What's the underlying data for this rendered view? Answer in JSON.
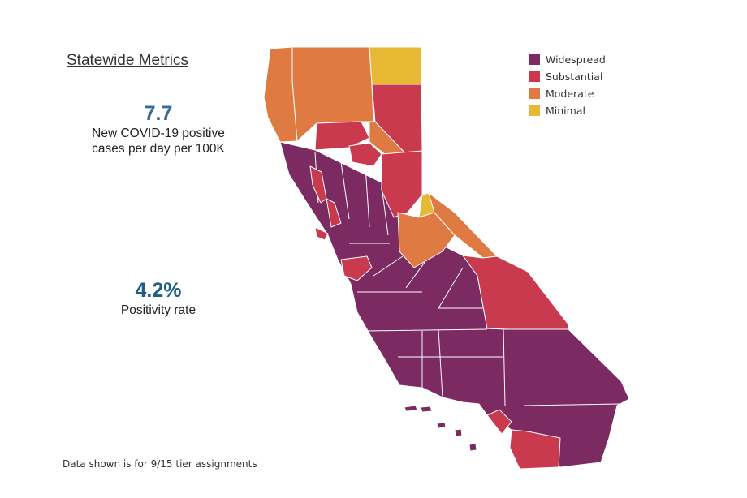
{
  "heading": "Statewide Metrics",
  "metrics": {
    "cases": {
      "value": "7.7",
      "label_line1": "New COVID-19 positive",
      "label_line2": "cases per day per 100K",
      "color": "#3a6d96"
    },
    "positivity": {
      "value": "4.2%",
      "label": "Positivity rate",
      "color": "#1d5f86"
    }
  },
  "legend": [
    {
      "tier": "widespread",
      "label": "Widespread",
      "color": "#7b2a62"
    },
    {
      "tier": "substantial",
      "label": "Substantial",
      "color": "#c93a4f"
    },
    {
      "tier": "moderate",
      "label": "Moderate",
      "color": "#df7a43"
    },
    {
      "tier": "minimal",
      "label": "Minimal",
      "color": "#e6b833"
    }
  ],
  "footnote": "Data shown is for 9/15 tier assignments"
}
